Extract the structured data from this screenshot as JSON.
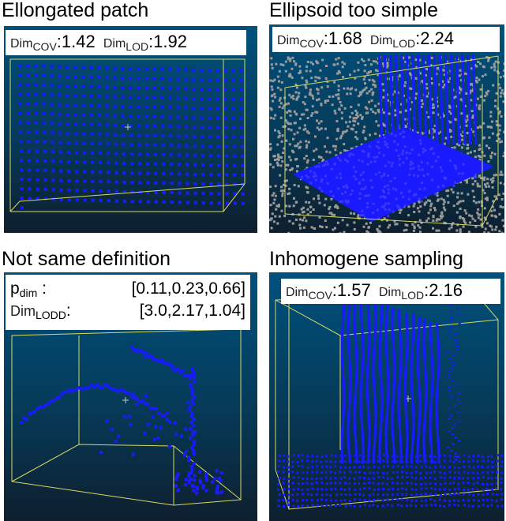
{
  "panels": [
    {
      "title": "Ellongated patch",
      "metric1": {
        "base": "Dim",
        "sub": "COV",
        "value": ":1.42"
      },
      "metric2": {
        "base": "Dim",
        "sub": "LOD",
        "value": ":1.92"
      }
    },
    {
      "title": "Ellipsoid too simple",
      "metric1": {
        "base": "Dim",
        "sub": "COV",
        "value": ":1.68"
      },
      "metric2": {
        "base": "Dim",
        "sub": "LOD",
        "value": ":2.24"
      }
    },
    {
      "title": "Not same definition",
      "row1": {
        "base": "p",
        "sub": "dim",
        "sep": " :",
        "value": "[0.11,0.23,0.66]"
      },
      "row2": {
        "base": "Dim",
        "sub": "LODD",
        "sep": ":",
        "value": "[3.0,2.17,1.04]"
      }
    },
    {
      "title": "Inhomogene sampling",
      "metric1": {
        "base": "Dim",
        "sub": "COV",
        "value": ":1.57"
      },
      "metric2": {
        "base": "Dim",
        "sub": "LOD",
        "value": ":2.16"
      }
    }
  ],
  "colors": {
    "points": "#1a1aff",
    "background_points": "#9a9a9a",
    "box_edges": "#d8d860"
  }
}
